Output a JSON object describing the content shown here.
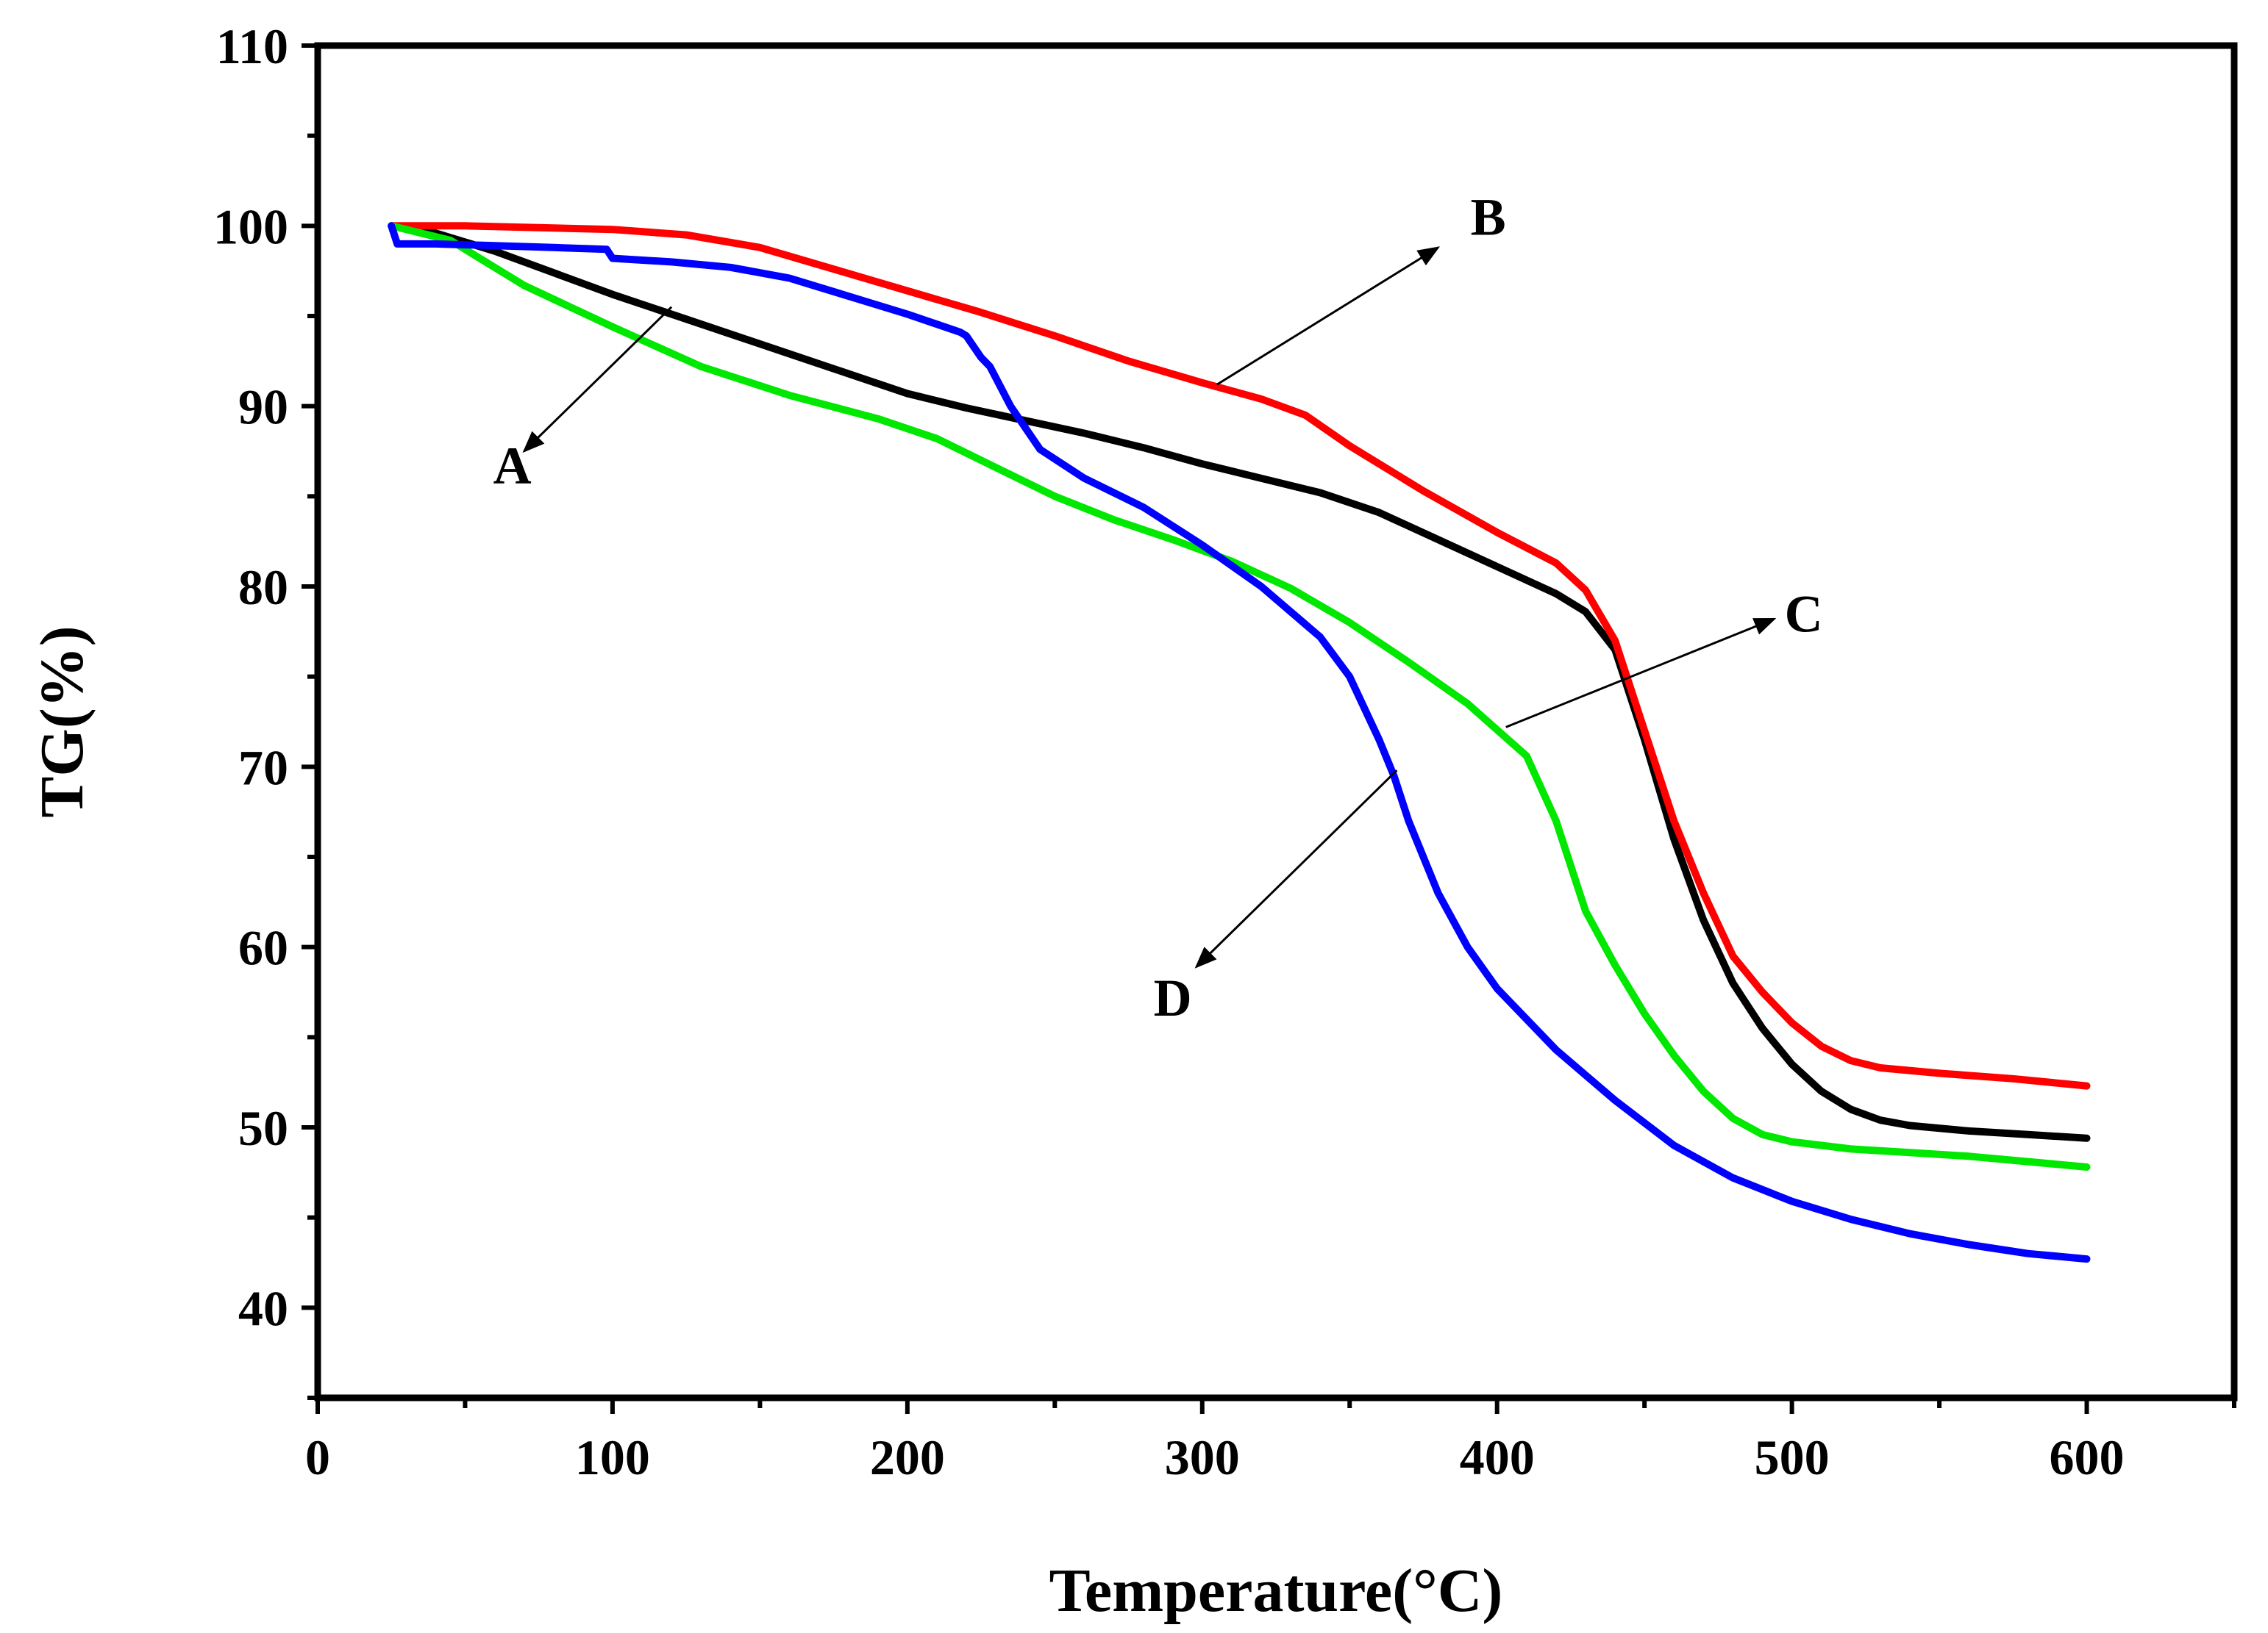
{
  "chart_data": {
    "type": "line",
    "title": "",
    "xlabel": "Temperature(°C)",
    "ylabel": "TG(%)",
    "xlim": [
      0,
      650
    ],
    "ylim": [
      35,
      110
    ],
    "xticks": [
      0,
      100,
      200,
      300,
      400,
      500,
      600
    ],
    "yticks": [
      40,
      50,
      60,
      70,
      80,
      90,
      100,
      110
    ],
    "grid": false,
    "series": [
      {
        "name": "A",
        "color": "#000000",
        "x": [
          25,
          40,
          60,
          80,
          100,
          120,
          140,
          160,
          180,
          200,
          220,
          240,
          260,
          280,
          300,
          320,
          340,
          360,
          380,
          400,
          420,
          430,
          440,
          450,
          460,
          470,
          480,
          490,
          500,
          510,
          520,
          530,
          540,
          560,
          580,
          600
        ],
        "y": [
          100,
          99.6,
          98.6,
          97.4,
          96.2,
          95.1,
          94.0,
          92.9,
          91.8,
          90.7,
          89.9,
          89.2,
          88.5,
          87.7,
          86.8,
          86.0,
          85.2,
          84.1,
          82.6,
          81.1,
          79.6,
          78.6,
          76.5,
          71.5,
          66.0,
          61.5,
          58.0,
          55.5,
          53.5,
          52.0,
          51.0,
          50.4,
          50.1,
          49.8,
          49.6,
          49.4
        ]
      },
      {
        "name": "B",
        "color": "#ff0000",
        "x": [
          25,
          50,
          75,
          100,
          125,
          150,
          175,
          200,
          225,
          250,
          275,
          300,
          320,
          335,
          350,
          375,
          400,
          420,
          430,
          440,
          450,
          460,
          470,
          480,
          490,
          500,
          510,
          520,
          530,
          550,
          575,
          600
        ],
        "y": [
          100,
          100,
          99.9,
          99.8,
          99.5,
          98.8,
          97.6,
          96.4,
          95.2,
          93.9,
          92.5,
          91.3,
          90.4,
          89.5,
          87.8,
          85.3,
          83.0,
          81.3,
          79.8,
          77.0,
          72.0,
          67.0,
          63.0,
          59.5,
          57.5,
          55.8,
          54.5,
          53.7,
          53.3,
          53.0,
          52.7,
          52.3
        ]
      },
      {
        "name": "C",
        "color": "#00e800",
        "x": [
          25,
          45,
          70,
          100,
          130,
          160,
          190,
          210,
          230,
          250,
          270,
          290,
          310,
          330,
          350,
          370,
          390,
          410,
          420,
          430,
          440,
          450,
          460,
          470,
          480,
          490,
          500,
          520,
          540,
          560,
          580,
          600
        ],
        "y": [
          100,
          99.2,
          96.7,
          94.4,
          92.2,
          90.6,
          89.3,
          88.2,
          86.6,
          85.0,
          83.7,
          82.6,
          81.4,
          79.9,
          78.0,
          75.8,
          73.5,
          70.6,
          67.0,
          62.0,
          59.0,
          56.3,
          54.0,
          52.0,
          50.5,
          49.6,
          49.2,
          48.8,
          48.6,
          48.4,
          48.1,
          47.8
        ]
      },
      {
        "name": "D",
        "color": "#0000ff",
        "x": [
          25,
          27,
          30,
          40,
          60,
          80,
          98,
          100,
          120,
          140,
          160,
          180,
          200,
          218,
          220,
          225,
          228,
          235,
          245,
          260,
          280,
          300,
          320,
          340,
          350,
          360,
          365,
          370,
          380,
          390,
          400,
          420,
          440,
          460,
          480,
          500,
          520,
          540,
          560,
          580,
          600
        ],
        "y": [
          100,
          99.0,
          99.0,
          99.0,
          98.9,
          98.8,
          98.7,
          98.2,
          98.0,
          97.7,
          97.1,
          96.1,
          95.1,
          94.1,
          93.9,
          92.7,
          92.2,
          90.0,
          87.6,
          86.0,
          84.4,
          82.3,
          80.0,
          77.2,
          75.0,
          71.5,
          69.5,
          67.0,
          63.0,
          60.0,
          57.7,
          54.3,
          51.5,
          49.0,
          47.2,
          45.9,
          44.9,
          44.1,
          43.5,
          43.0,
          42.7
        ]
      }
    ],
    "annotations": [
      {
        "label": "A",
        "arrow_from": [
          120,
          95.5
        ],
        "arrow_to": [
          70,
          87.5
        ],
        "text_at": [
          66,
          85.7
        ]
      },
      {
        "label": "B",
        "arrow_from": [
          305,
          91.2
        ],
        "arrow_to": [
          380,
          98.8
        ],
        "text_at": [
          397,
          99.5
        ]
      },
      {
        "label": "C",
        "arrow_from": [
          403,
          72.2
        ],
        "arrow_to": [
          494,
          78.2
        ],
        "text_at": [
          504,
          77.5
        ]
      },
      {
        "label": "D",
        "arrow_from": [
          366,
          69.8
        ],
        "arrow_to": [
          298,
          58.9
        ],
        "text_at": [
          290,
          56.2
        ]
      }
    ]
  }
}
